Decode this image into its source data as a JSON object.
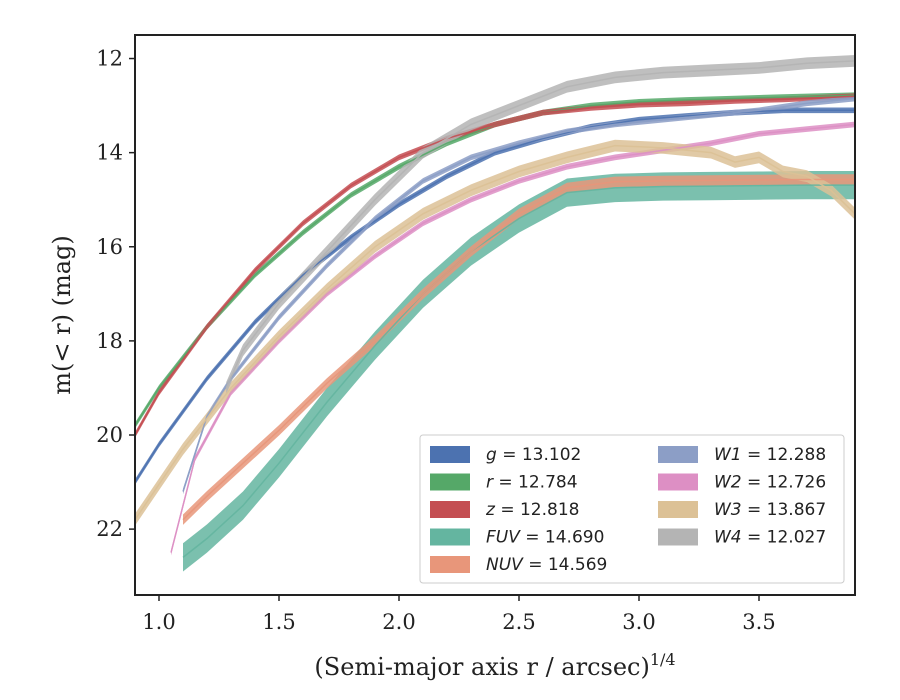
{
  "chart_data": {
    "type": "line",
    "xlabel": "(Semi-major axis r / arcsec)",
    "xlabel_superscript": "1/4",
    "ylabel": "m(< r) (mag)",
    "xlim": [
      0.9,
      3.9
    ],
    "ylim": [
      23.4,
      11.5
    ],
    "y_inverted": true,
    "grid": false,
    "legend_placement": "lower-right",
    "x_ticks": [
      "1.0",
      "1.5",
      "2.0",
      "2.5",
      "3.0",
      "3.5"
    ],
    "y_ticks": [
      "12",
      "14",
      "16",
      "18",
      "20",
      "22"
    ],
    "x_tick_values": [
      1.0,
      1.5,
      2.0,
      2.5,
      3.0,
      3.5
    ],
    "y_tick_values": [
      12,
      14,
      16,
      18,
      20,
      22
    ],
    "series": [
      {
        "name": "g",
        "total": "13.102",
        "color": "#4c72b0",
        "band_width": 0.12,
        "x": [
          0.9,
          1.0,
          1.2,
          1.4,
          1.6,
          1.8,
          2.0,
          2.2,
          2.4,
          2.6,
          2.8,
          3.0,
          3.2,
          3.4,
          3.6,
          3.9
        ],
        "y": [
          21.0,
          20.2,
          18.8,
          17.6,
          16.6,
          15.8,
          15.1,
          14.5,
          14.0,
          13.7,
          13.45,
          13.3,
          13.22,
          13.15,
          13.1,
          13.1
        ]
      },
      {
        "name": "r",
        "total": "12.784",
        "color": "#55a868",
        "band_width": 0.12,
        "x": [
          0.9,
          1.0,
          1.2,
          1.4,
          1.6,
          1.8,
          2.0,
          2.2,
          2.4,
          2.6,
          2.8,
          3.0,
          3.2,
          3.4,
          3.6,
          3.9
        ],
        "y": [
          19.8,
          19.0,
          17.7,
          16.6,
          15.7,
          14.9,
          14.3,
          13.8,
          13.4,
          13.15,
          13.0,
          12.92,
          12.88,
          12.85,
          12.82,
          12.78
        ]
      },
      {
        "name": "z",
        "total": "12.818",
        "color": "#c44e52",
        "band_width": 0.12,
        "x": [
          0.9,
          1.0,
          1.2,
          1.4,
          1.6,
          1.8,
          2.0,
          2.2,
          2.4,
          2.6,
          2.8,
          3.0,
          3.2,
          3.4,
          3.6,
          3.9
        ],
        "y": [
          20.0,
          19.1,
          17.7,
          16.5,
          15.5,
          14.7,
          14.1,
          13.7,
          13.4,
          13.15,
          13.05,
          12.98,
          12.95,
          12.9,
          12.87,
          12.8
        ]
      },
      {
        "name": "FUV",
        "total": "14.690",
        "color": "#64b5a0",
        "band_width": 0.6,
        "x": [
          1.1,
          1.2,
          1.35,
          1.5,
          1.7,
          1.9,
          2.1,
          2.3,
          2.5,
          2.7,
          2.9,
          3.1,
          3.3,
          3.5,
          3.7,
          3.9
        ],
        "y": [
          22.6,
          22.2,
          21.5,
          20.6,
          19.3,
          18.1,
          17.0,
          16.1,
          15.4,
          14.85,
          14.75,
          14.72,
          14.71,
          14.7,
          14.69,
          14.69
        ]
      },
      {
        "name": "NUV",
        "total": "14.569",
        "color": "#e8967a",
        "band_width": 0.22,
        "x": [
          1.1,
          1.2,
          1.35,
          1.5,
          1.7,
          1.9,
          2.1,
          2.3,
          2.5,
          2.7,
          2.9,
          3.1,
          3.3,
          3.5,
          3.7,
          3.9
        ],
        "y": [
          21.8,
          21.3,
          20.6,
          19.9,
          18.9,
          18.0,
          17.0,
          16.1,
          15.3,
          14.75,
          14.62,
          14.6,
          14.59,
          14.58,
          14.57,
          14.57
        ]
      },
      {
        "name": "W1",
        "total": "12.288",
        "color": "#8c9ec6",
        "band_width": 0.12,
        "x": [
          1.1,
          1.2,
          1.3,
          1.5,
          1.7,
          1.9,
          2.1,
          2.3,
          2.5,
          2.7,
          2.9,
          3.1,
          3.3,
          3.5,
          3.7,
          3.9
        ],
        "y": [
          21.2,
          19.6,
          18.8,
          17.5,
          16.4,
          15.4,
          14.6,
          14.1,
          13.8,
          13.55,
          13.4,
          13.3,
          13.2,
          13.1,
          12.95,
          12.85
        ]
      },
      {
        "name": "W2",
        "total": "12.726",
        "color": "#dd8fc4",
        "band_width": 0.12,
        "x": [
          1.05,
          1.15,
          1.3,
          1.5,
          1.7,
          1.9,
          2.1,
          2.3,
          2.5,
          2.7,
          2.9,
          3.1,
          3.3,
          3.5,
          3.7,
          3.9
        ],
        "y": [
          22.5,
          20.5,
          19.1,
          18.0,
          17.0,
          16.2,
          15.5,
          15.0,
          14.6,
          14.3,
          14.1,
          13.95,
          13.8,
          13.6,
          13.5,
          13.4
        ]
      },
      {
        "name": "W3",
        "total": "13.867",
        "color": "#dcc196",
        "band_width": 0.25,
        "x": [
          0.9,
          1.1,
          1.3,
          1.5,
          1.7,
          1.9,
          2.1,
          2.3,
          2.5,
          2.7,
          2.9,
          3.1,
          3.3,
          3.4,
          3.5,
          3.6,
          3.7,
          3.8,
          3.9
        ],
        "y": [
          21.8,
          20.3,
          19.0,
          17.9,
          16.9,
          16.0,
          15.3,
          14.8,
          14.4,
          14.1,
          13.85,
          13.9,
          14.0,
          14.2,
          14.1,
          14.4,
          14.5,
          14.8,
          15.3
        ]
      },
      {
        "name": "W4",
        "total": "12.027",
        "color": "#b4b4b4",
        "band_width": 0.25,
        "x": [
          1.28,
          1.35,
          1.5,
          1.7,
          1.9,
          2.1,
          2.3,
          2.5,
          2.7,
          2.9,
          3.1,
          3.3,
          3.5,
          3.7,
          3.9
        ],
        "y": [
          19.0,
          18.2,
          17.2,
          16.1,
          15.0,
          14.0,
          13.4,
          13.0,
          12.6,
          12.4,
          12.3,
          12.25,
          12.2,
          12.1,
          12.05
        ]
      }
    ]
  }
}
